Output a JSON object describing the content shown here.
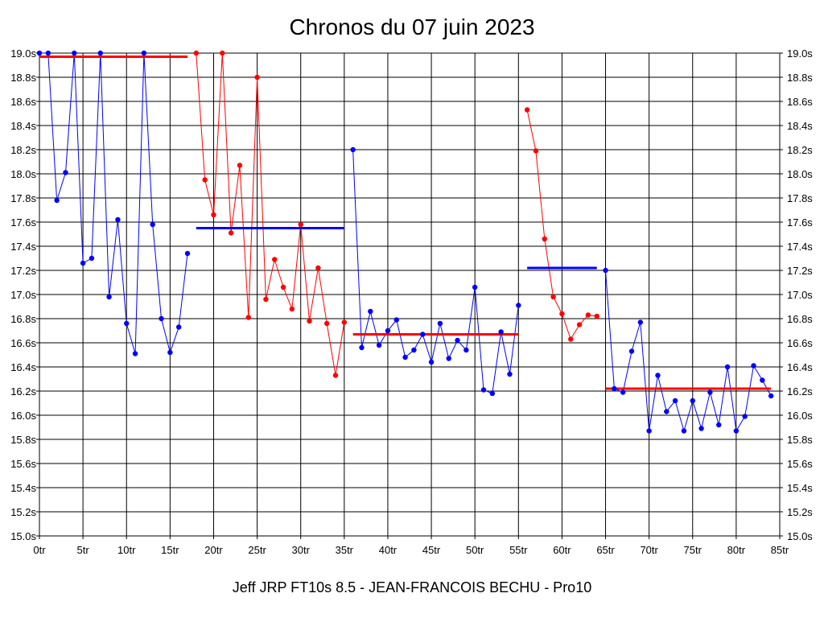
{
  "chart_data": {
    "type": "line",
    "title": "Chronos du 07 juin 2023",
    "footer": "Jeff JRP FT10s 8.5 - JEAN-FRANCOIS BECHU - Pro10",
    "xlim": [
      0,
      85
    ],
    "ylim": [
      15.0,
      19.0
    ],
    "grid": true,
    "x_tick_values": [
      0,
      5,
      10,
      15,
      20,
      25,
      30,
      35,
      40,
      45,
      50,
      55,
      60,
      65,
      70,
      75,
      80,
      85
    ],
    "x_tick_labels": [
      "0tr",
      "5tr",
      "10tr",
      "15tr",
      "20tr",
      "25tr",
      "30tr",
      "35tr",
      "40tr",
      "45tr",
      "50tr",
      "55tr",
      "60tr",
      "65tr",
      "70tr",
      "75tr",
      "80tr",
      "85tr"
    ],
    "y_tick_values": [
      15.0,
      15.2,
      15.4,
      15.6,
      15.8,
      16.0,
      16.2,
      16.4,
      16.6,
      16.8,
      17.0,
      17.2,
      17.4,
      17.6,
      17.8,
      18.0,
      18.2,
      18.4,
      18.6,
      18.8,
      19.0
    ],
    "y_tick_labels": [
      "15.0s",
      "15.2s",
      "15.4s",
      "15.6s",
      "15.8s",
      "16.0s",
      "16.2s",
      "16.4s",
      "16.6s",
      "16.8s",
      "17.0s",
      "17.2s",
      "17.4s",
      "17.6s",
      "17.8s",
      "18.0s",
      "18.2s",
      "18.4s",
      "18.6s",
      "18.8s",
      "19.0s"
    ],
    "series": [
      {
        "color": "#0000ff",
        "points": [
          [
            0,
            19.0
          ],
          [
            1,
            19.0
          ],
          [
            2,
            17.78
          ],
          [
            3,
            18.01
          ],
          [
            4,
            19.0
          ],
          [
            5,
            17.26
          ],
          [
            6,
            17.3
          ],
          [
            7,
            19.0
          ],
          [
            8,
            16.98
          ],
          [
            9,
            17.62
          ],
          [
            10,
            16.76
          ],
          [
            11,
            16.51
          ],
          [
            12,
            19.0
          ],
          [
            13,
            17.58
          ],
          [
            14,
            16.8
          ],
          [
            15,
            16.52
          ],
          [
            16,
            16.73
          ],
          [
            17,
            17.34
          ]
        ]
      },
      {
        "color": "#ff0000",
        "points": [
          [
            18,
            19.0
          ],
          [
            19,
            17.95
          ],
          [
            20,
            17.66
          ],
          [
            21,
            19.0
          ],
          [
            22,
            17.51
          ],
          [
            23,
            18.07
          ],
          [
            24,
            16.81
          ],
          [
            25,
            18.8
          ],
          [
            26,
            16.96
          ],
          [
            27,
            17.29
          ],
          [
            28,
            17.06
          ],
          [
            29,
            16.88
          ],
          [
            30,
            17.58
          ],
          [
            31,
            16.78
          ],
          [
            32,
            17.22
          ],
          [
            33,
            16.76
          ],
          [
            34,
            16.33
          ],
          [
            35,
            16.77
          ]
        ]
      },
      {
        "color": "#0000ff",
        "points": [
          [
            36,
            18.2
          ],
          [
            37,
            16.56
          ],
          [
            38,
            16.86
          ],
          [
            39,
            16.58
          ],
          [
            40,
            16.7
          ],
          [
            41,
            16.79
          ],
          [
            42,
            16.48
          ],
          [
            43,
            16.54
          ],
          [
            44,
            16.67
          ],
          [
            45,
            16.44
          ],
          [
            46,
            16.76
          ],
          [
            47,
            16.47
          ],
          [
            48,
            16.62
          ],
          [
            49,
            16.54
          ],
          [
            50,
            17.06
          ],
          [
            51,
            16.21
          ],
          [
            52,
            16.18
          ],
          [
            53,
            16.69
          ],
          [
            54,
            16.34
          ],
          [
            55,
            16.91
          ]
        ]
      },
      {
        "color": "#ff0000",
        "points": [
          [
            56,
            18.53
          ],
          [
            57,
            18.19
          ],
          [
            58,
            17.46
          ],
          [
            59,
            16.98
          ],
          [
            60,
            16.84
          ],
          [
            61,
            16.63
          ],
          [
            62,
            16.75
          ],
          [
            63,
            16.83
          ],
          [
            64,
            16.82
          ]
        ]
      },
      {
        "color": "#0000ff",
        "points": [
          [
            65,
            17.2
          ],
          [
            66,
            16.22
          ],
          [
            67,
            16.19
          ],
          [
            68,
            16.53
          ],
          [
            69,
            16.77
          ],
          [
            70,
            15.87
          ],
          [
            71,
            16.33
          ],
          [
            72,
            16.03
          ],
          [
            73,
            16.12
          ],
          [
            74,
            15.87
          ],
          [
            75,
            16.12
          ],
          [
            76,
            15.89
          ],
          [
            77,
            16.19
          ],
          [
            78,
            15.92
          ],
          [
            79,
            16.4
          ],
          [
            80,
            15.87
          ],
          [
            81,
            15.99
          ],
          [
            82,
            16.41
          ],
          [
            83,
            16.29
          ],
          [
            84,
            16.16
          ]
        ]
      }
    ],
    "mean_lines": [
      {
        "color": "#ff0000",
        "x1": 0,
        "x2": 17,
        "y": 18.97
      },
      {
        "color": "#0000ff",
        "x1": 18,
        "x2": 35,
        "y": 17.55
      },
      {
        "color": "#ff0000",
        "x1": 36,
        "x2": 55,
        "y": 16.67
      },
      {
        "color": "#0000ff",
        "x1": 56,
        "x2": 64,
        "y": 17.22
      },
      {
        "color": "#ff0000",
        "x1": 65,
        "x2": 84,
        "y": 16.22
      }
    ]
  }
}
